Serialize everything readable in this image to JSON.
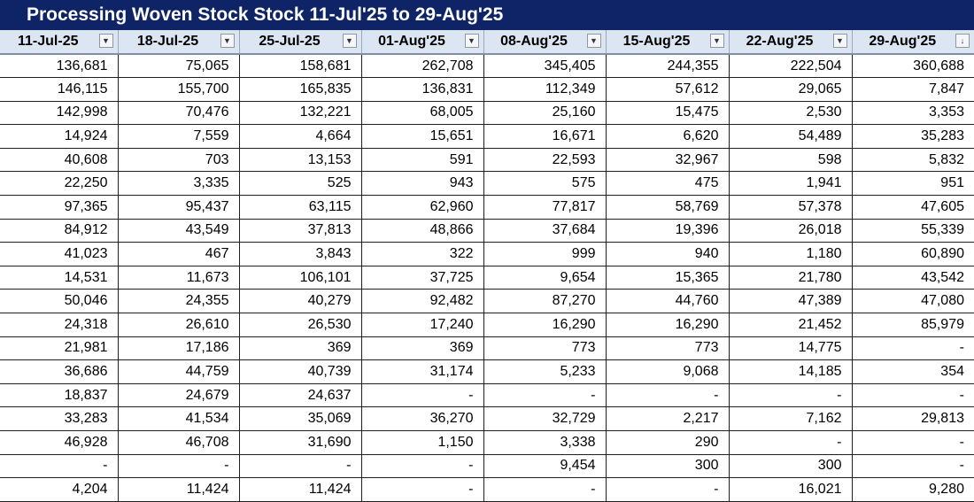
{
  "title": "Processing Woven Stock Stock 11-Jul'25 to 29-Aug'25",
  "columns": [
    {
      "label": "11-Jul-25",
      "filter_icon": "▼"
    },
    {
      "label": "18-Jul-25",
      "filter_icon": "▼"
    },
    {
      "label": "25-Jul-25",
      "filter_icon": "▼"
    },
    {
      "label": "01-Aug'25",
      "filter_icon": "▼"
    },
    {
      "label": "08-Aug'25",
      "filter_icon": "▼"
    },
    {
      "label": "15-Aug'25",
      "filter_icon": "▼"
    },
    {
      "label": "22-Aug'25",
      "filter_icon": "▼"
    },
    {
      "label": "29-Aug'25",
      "filter_icon": "↓"
    }
  ],
  "rows": [
    [
      "136,681",
      "75,065",
      "158,681",
      "262,708",
      "345,405",
      "244,355",
      "222,504",
      "360,688"
    ],
    [
      "146,115",
      "155,700",
      "165,835",
      "136,831",
      "112,349",
      "57,612",
      "29,065",
      "7,847"
    ],
    [
      "142,998",
      "70,476",
      "132,221",
      "68,005",
      "25,160",
      "15,475",
      "2,530",
      "3,353"
    ],
    [
      "14,924",
      "7,559",
      "4,664",
      "15,651",
      "16,671",
      "6,620",
      "54,489",
      "35,283"
    ],
    [
      "40,608",
      "703",
      "13,153",
      "591",
      "22,593",
      "32,967",
      "598",
      "5,832"
    ],
    [
      "22,250",
      "3,335",
      "525",
      "943",
      "575",
      "475",
      "1,941",
      "951"
    ],
    [
      "97,365",
      "95,437",
      "63,115",
      "62,960",
      "77,817",
      "58,769",
      "57,378",
      "47,605"
    ],
    [
      "84,912",
      "43,549",
      "37,813",
      "48,866",
      "37,684",
      "19,396",
      "26,018",
      "55,339"
    ],
    [
      "41,023",
      "467",
      "3,843",
      "322",
      "999",
      "940",
      "1,180",
      "60,890"
    ],
    [
      "14,531",
      "11,673",
      "106,101",
      "37,725",
      "9,654",
      "15,365",
      "21,780",
      "43,542"
    ],
    [
      "50,046",
      "24,355",
      "40,279",
      "92,482",
      "87,270",
      "44,760",
      "47,389",
      "47,080"
    ],
    [
      "24,318",
      "26,610",
      "26,530",
      "17,240",
      "16,290",
      "16,290",
      "21,452",
      "85,979"
    ],
    [
      "21,981",
      "17,186",
      "369",
      "369",
      "773",
      "773",
      "14,775",
      "-"
    ],
    [
      "36,686",
      "44,759",
      "40,739",
      "31,174",
      "5,233",
      "9,068",
      "14,185",
      "354"
    ],
    [
      "18,837",
      "24,679",
      "24,637",
      "-",
      "-",
      "-",
      "-",
      "-"
    ],
    [
      "33,283",
      "41,534",
      "35,069",
      "36,270",
      "32,729",
      "2,217",
      "7,162",
      "29,813"
    ],
    [
      "46,928",
      "46,708",
      "31,690",
      "1,150",
      "3,338",
      "290",
      "-",
      "-"
    ],
    [
      "-",
      "-",
      "-",
      "-",
      "9,454",
      "300",
      "300",
      "-"
    ],
    [
      "4,204",
      "11,424",
      "11,424",
      "-",
      "-",
      "-",
      "16,021",
      "9,280"
    ]
  ]
}
